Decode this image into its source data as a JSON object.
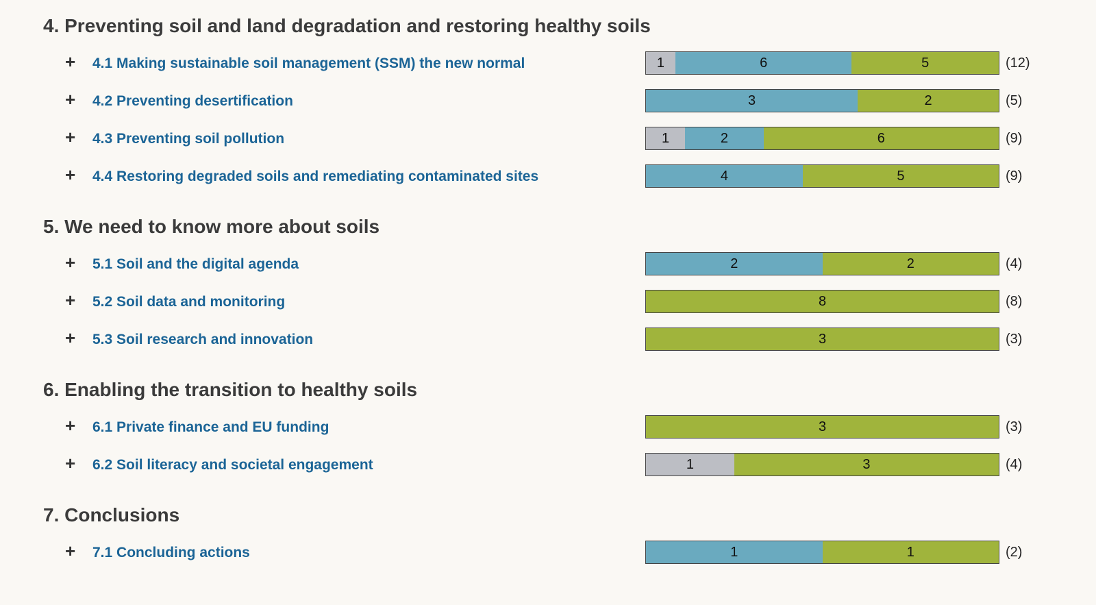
{
  "chart_data": {
    "type": "bar",
    "orientation": "horizontal-stacked",
    "colors": {
      "gray": "#bcbec4",
      "blue": "#6aaabf",
      "green": "#a0b43c"
    },
    "sections": [
      {
        "title": "4. Preventing soil and land degradation and restoring healthy soils",
        "items": [
          {
            "label": "4.1 Making sustainable soil management (SSM) the new normal",
            "segments": [
              {
                "color": "gray",
                "value": 1
              },
              {
                "color": "blue",
                "value": 6
              },
              {
                "color": "green",
                "value": 5
              }
            ],
            "total": "(12)"
          },
          {
            "label": "4.2 Preventing desertification",
            "segments": [
              {
                "color": "blue",
                "value": 3
              },
              {
                "color": "green",
                "value": 2
              }
            ],
            "total": "(5)"
          },
          {
            "label": "4.3 Preventing soil pollution",
            "segments": [
              {
                "color": "gray",
                "value": 1
              },
              {
                "color": "blue",
                "value": 2
              },
              {
                "color": "green",
                "value": 6
              }
            ],
            "total": "(9)"
          },
          {
            "label": "4.4 Restoring degraded soils and remediating contaminated sites",
            "segments": [
              {
                "color": "blue",
                "value": 4
              },
              {
                "color": "green",
                "value": 5
              }
            ],
            "total": "(9)"
          }
        ]
      },
      {
        "title": "5. We need to know more about soils",
        "items": [
          {
            "label": "5.1 Soil and the digital agenda",
            "segments": [
              {
                "color": "blue",
                "value": 2
              },
              {
                "color": "green",
                "value": 2
              }
            ],
            "total": "(4)"
          },
          {
            "label": "5.2 Soil data and monitoring",
            "segments": [
              {
                "color": "green",
                "value": 8
              }
            ],
            "total": "(8)"
          },
          {
            "label": "5.3 Soil research and innovation",
            "segments": [
              {
                "color": "green",
                "value": 3
              }
            ],
            "total": "(3)"
          }
        ]
      },
      {
        "title": "6. Enabling the transition to healthy soils",
        "items": [
          {
            "label": "6.1 Private finance and EU funding",
            "segments": [
              {
                "color": "green",
                "value": 3
              }
            ],
            "total": "(3)"
          },
          {
            "label": "6.2 Soil literacy and societal engagement",
            "segments": [
              {
                "color": "gray",
                "value": 1
              },
              {
                "color": "green",
                "value": 3
              }
            ],
            "total": "(4)"
          }
        ]
      },
      {
        "title": "7. Conclusions",
        "items": [
          {
            "label": "7.1 Concluding actions",
            "segments": [
              {
                "color": "blue",
                "value": 1
              },
              {
                "color": "green",
                "value": 1
              }
            ],
            "total": "(2)"
          }
        ]
      }
    ],
    "expand_icon": "plus-icon"
  }
}
